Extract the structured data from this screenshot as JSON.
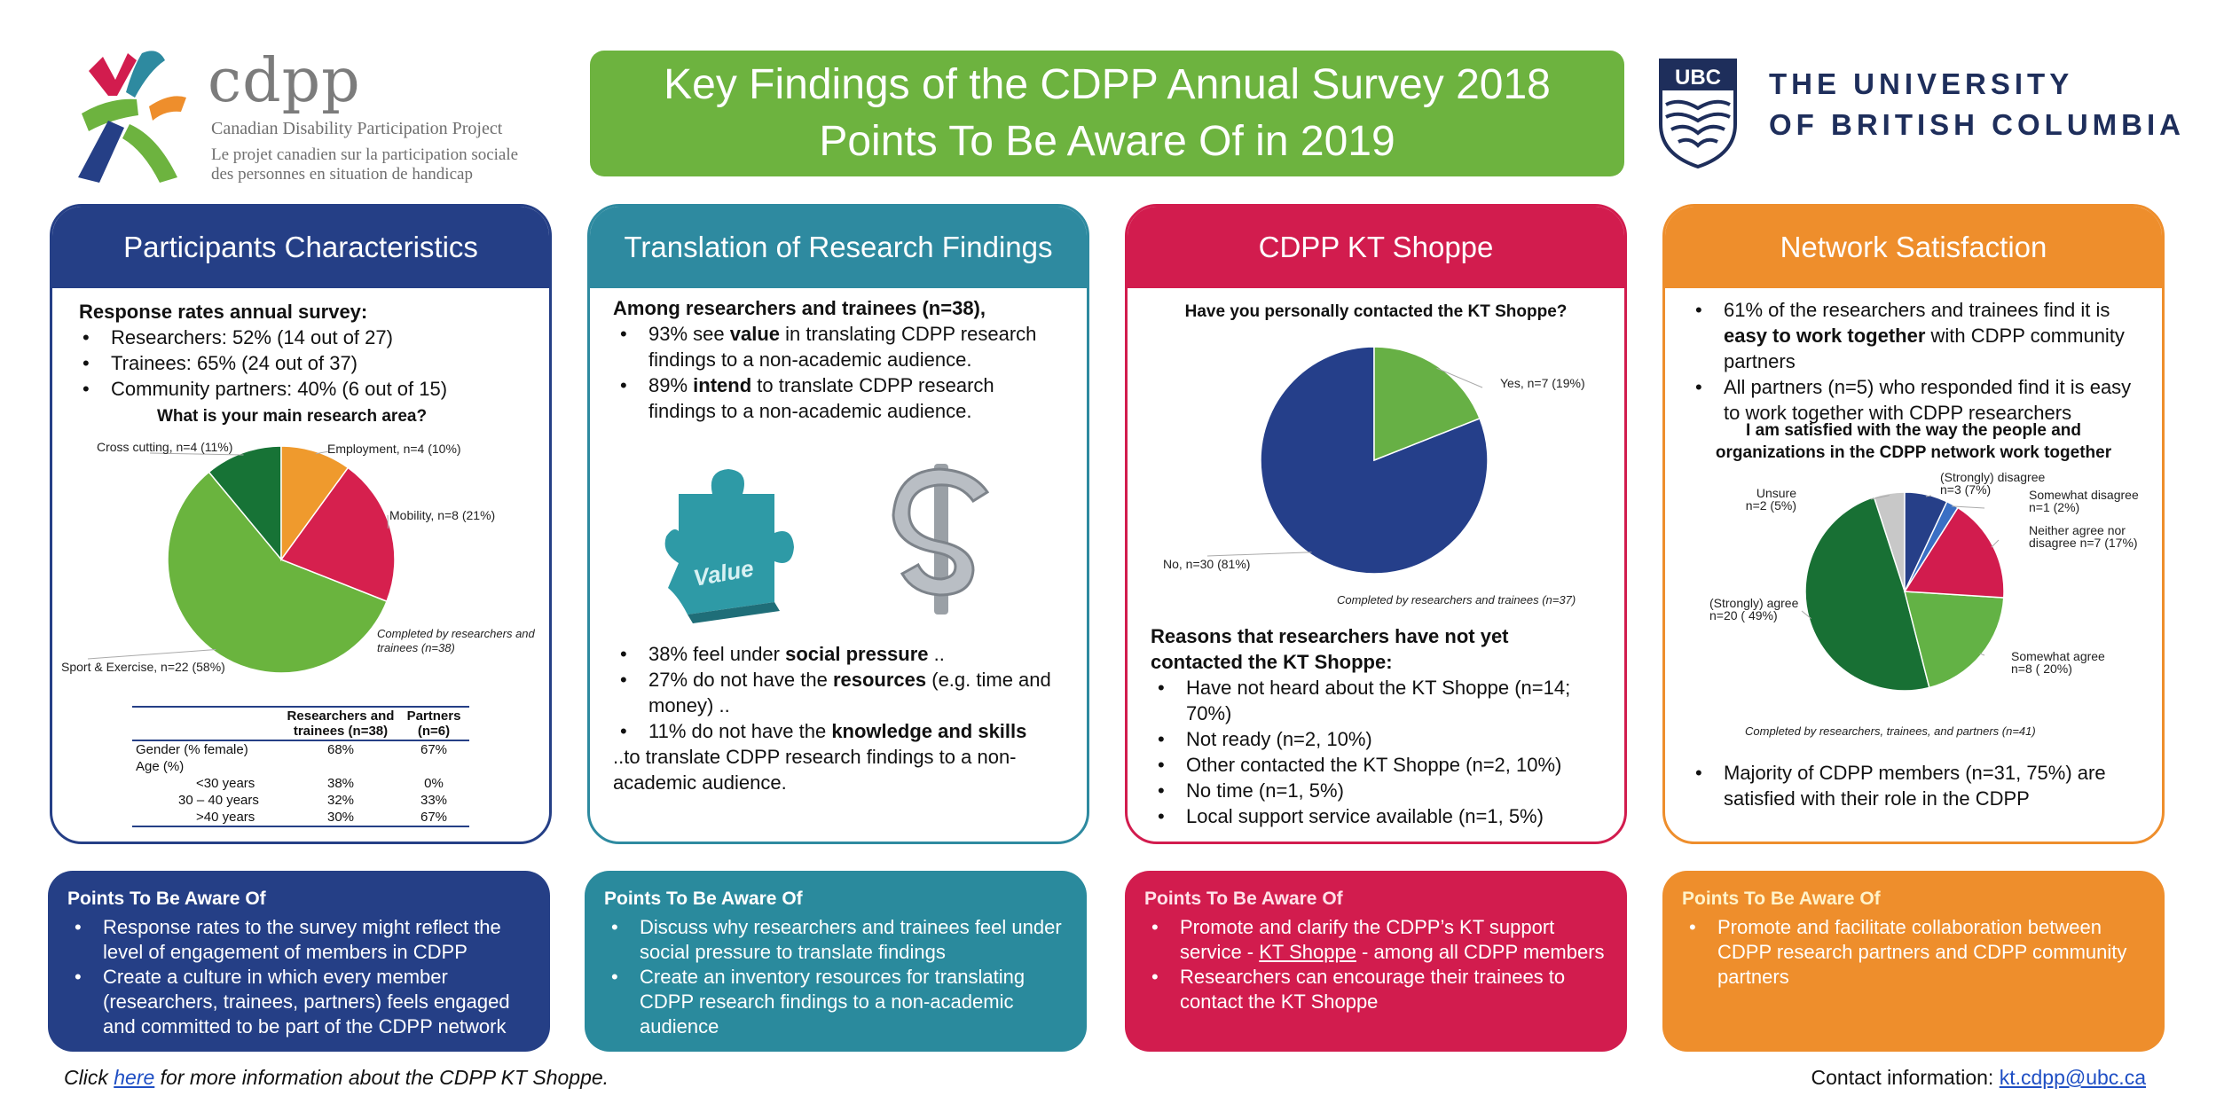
{
  "header": {
    "logo": {
      "wordmark": "cdpp",
      "name_en": "Canadian Disability Participation Project",
      "name_fr": "Le projet canadien sur la participation sociale des personnes en situation de handicap"
    },
    "title_line1": "Key Findings of the CDPP Annual Survey 2018",
    "title_line2": "Points To Be Aware Of in 2019",
    "ubc_badge": "UBC",
    "ubc_line1": "THE UNIVERSITY",
    "ubc_line2": "OF BRITISH COLUMBIA"
  },
  "colors": {
    "navy": "#253f86",
    "teal": "#2e8aa0",
    "crimson": "#d21c4e",
    "orange": "#ee8e2c",
    "green": "#6db33f"
  },
  "panels": {
    "participants": {
      "title": "Participants Characteristics",
      "response_heading": "Response rates annual survey:",
      "rates": [
        "Researchers: 52% (14 out of 27)",
        "Trainees:  65% (24 out of 37)",
        "Community partners: 40% (6 out of 15)"
      ],
      "chart_title": "What is your main research area?",
      "note": [
        "Completed by researchers and",
        "trainees (n=38)"
      ],
      "table": {
        "headers": [
          "",
          "Researchers and trainees (n=38)",
          "Partners (n=6)"
        ],
        "rows": [
          [
            "Gender (% female)",
            "68%",
            "67%"
          ],
          [
            "Age (%)",
            "",
            ""
          ],
          [
            "<30 years",
            "38%",
            "0%"
          ],
          [
            "30 – 40 years",
            "32%",
            "33%"
          ],
          [
            ">40 years",
            "30%",
            "67%"
          ]
        ]
      }
    },
    "translation": {
      "title": "Translation of Research Findings",
      "intro": "Among researchers and trainees (n=38),",
      "b1_pre": "93% see ",
      "b1_bold": "value",
      "b1_post": " in translating CDPP research findings to a non-academic audience.",
      "b2_pre": "89% ",
      "b2_bold": "intend",
      "b2_post": " to translate CDPP research findings to a non-academic audience.",
      "puzzle_label": "Value",
      "dollar_icon": "dollar-sign",
      "c1_pre": "38% feel under ",
      "c1_bold": "social pressure",
      "c1_post": " ..",
      "c2_pre": "27% do not have the ",
      "c2_bold": "resources",
      "c2_post": " (e.g. time and money) ..",
      "c3_pre": "11% do not have the ",
      "c3_bold": "knowledge and skills",
      "closing": "..to translate CDPP research findings to a non-academic audience."
    },
    "kt_shoppe": {
      "title": "CDPP KT Shoppe",
      "chart_title": "Have you personally contacted the KT Shoppe?",
      "note": "Completed by researchers and trainees (n=37)",
      "reasons_heading": "Reasons that researchers have not yet contacted the KT Shoppe:",
      "reasons": [
        "Have not heard about the KT Shoppe (n=14; 70%)",
        "Not ready (n=2, 10%)",
        "Other contacted the KT Shoppe (n=2, 10%)",
        "No time (n=1, 5%)",
        "Local support service available (n=1, 5%)"
      ]
    },
    "network": {
      "title": "Network Satisfaction",
      "b1_pre": "61% of the researchers and trainees find it is ",
      "b1_bold": "easy to work together",
      "b1_post": " with CDPP community partners",
      "b2": "All partners (n=5) who responded find it is easy to work together with CDPP researchers",
      "chart_title": "I am satisfied with the way the people and organizations in the CDPP network work together",
      "note": "Completed by researchers, trainees, and partners (n=41)",
      "closing": "Majority of CDPP members (n=31, 75%) are satisfied with their role in the CDPP"
    }
  },
  "aware": {
    "heading": "Points To Be Aware Of",
    "participants": [
      "Response rates to the survey might reflect the level of engagement of members in CDPP",
      "Create a culture in which every member (researchers, trainees, partners) feels engaged and committed to be part of the  CDPP network"
    ],
    "translation": [
      "Discuss why researchers and trainees feel under social pressure to translate findings",
      "Create an inventory resources  for translating CDPP research findings to a non-academic audience"
    ],
    "kt_pre": "Promote and clarify the CDPP’s KT support service - ",
    "kt_link": "KT Shoppe",
    "kt_post": " - among all CDPP members",
    "kt_b2": "Researchers can encourage their trainees to contact the KT Shoppe",
    "network": [
      "Promote and facilitate collaboration between CDPP research partners and CDPP community partners"
    ]
  },
  "footer": {
    "click": "Click ",
    "here": "here",
    "rest": " for more information about the CDPP KT Shoppe.",
    "contact_label": "Contact information: ",
    "email": "kt.cdpp@ubc.ca"
  },
  "chart_data": [
    {
      "type": "pie",
      "title": "What is your main research area?",
      "categories": [
        "Employment",
        "Mobility",
        "Sport & Exercise",
        "Cross cutting"
      ],
      "labels": [
        "Employment, n=4 (10%)",
        "Mobility, n=8 (21%)",
        "Sport & Exercise, n=22  (58%)",
        "Cross cutting, n=4 (11%)"
      ],
      "values": [
        10,
        21,
        58,
        11
      ],
      "colors": [
        "#ef9a2d",
        "#d6204e",
        "#6ab43e",
        "#177336"
      ]
    },
    {
      "type": "pie",
      "title": "Have you personally contacted the KT Shoppe?",
      "categories": [
        "Yes",
        "No"
      ],
      "labels": [
        "Yes, n=7 (19%)",
        "No, n=30 (81%)"
      ],
      "values": [
        19,
        81
      ],
      "colors": [
        "#67b045",
        "#253f8a"
      ]
    },
    {
      "type": "pie",
      "title": "I am satisfied with the way the people and organizations in the CDPP network work together",
      "categories": [
        "(Strongly) disagree",
        "Somewhat disagree",
        "Neither agree nor disagree",
        "Somewhat agree",
        "(Strongly) agree",
        "Unsure"
      ],
      "labels": [
        [
          "(Strongly) disagree",
          "n=3 (7%)"
        ],
        [
          "Somewhat disagree",
          "n=1 (2%)"
        ],
        [
          "Neither agree nor",
          "disagree n=7 (17%)"
        ],
        [
          "Somewhat agree",
          "n=8 ( 20%)"
        ],
        [
          "(Strongly) agree",
          "n=20 ( 49%)"
        ],
        [
          "Unsure",
          "n=2 (5%)"
        ]
      ],
      "values": [
        7,
        2,
        17,
        20,
        49,
        5
      ],
      "colors": [
        "#263f88",
        "#3a6fc4",
        "#d21c4e",
        "#63b245",
        "#187034",
        "#c8c8c8"
      ]
    }
  ]
}
